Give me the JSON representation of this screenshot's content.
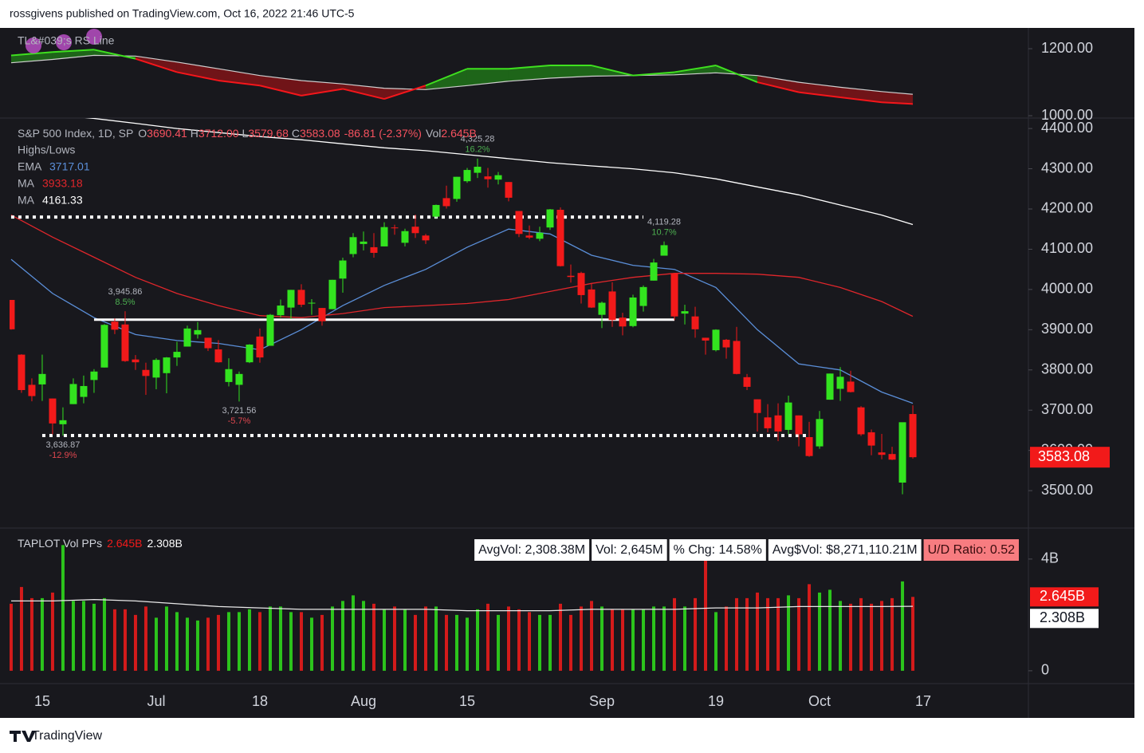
{
  "header": {
    "publisher": "rossgivens published on TradingView.com, Oct 16, 2022 21:46 UTC-5"
  },
  "footer": {
    "brand": "TradingView"
  },
  "chart_data": [
    {
      "type": "line",
      "title": "TL&#039;s RS Line",
      "ylim": [
        993,
        1262
      ],
      "yticks": [
        {
          "value": 1000,
          "label": "1000.00"
        },
        {
          "value": 1200,
          "label": "1200.00"
        }
      ],
      "x": [
        0,
        4,
        8,
        12,
        16,
        20,
        24,
        28,
        32,
        36,
        40,
        44,
        48,
        52,
        56,
        60,
        64,
        68,
        72,
        76,
        80,
        84,
        87
      ],
      "series": [
        {
          "values": [
            1180,
            1190,
            1197,
            1170,
            1130,
            1105,
            1090,
            1060,
            1080,
            1050,
            1090,
            1140,
            1140,
            1150,
            1150,
            1120,
            1130,
            1150,
            1100,
            1070,
            1055,
            1040,
            1035
          ],
          "up_color": "#3fe01f",
          "down_color": "#f5161b",
          "up_fill": "#1f6e1a",
          "down_fill": "#7a1418"
        },
        {
          "values": [
            1158,
            1168,
            1180,
            1178,
            1160,
            1140,
            1120,
            1105,
            1095,
            1082,
            1078,
            1090,
            1103,
            1112,
            1118,
            1120,
            1122,
            1128,
            1120,
            1100,
            1085,
            1072,
            1064
          ],
          "color": "#cfcfcf"
        }
      ]
    },
    {
      "type": "candlestick",
      "legend": {
        "name": "S&P 500 Index, 1D, SP",
        "ohlc": [
          {
            "key": "O",
            "value": "3690.41"
          },
          {
            "key": "H",
            "value": "3712.00"
          },
          {
            "key": "L",
            "value": "3579.68"
          },
          {
            "key": "C",
            "value": "3583.08"
          }
        ],
        "change": "-86.81 (-2.37%)",
        "vol_key": "Vol",
        "vol_value": "2.645B",
        "color": "#f7525f"
      },
      "highs_lows": "Highs/Lows",
      "categories": [
        null,
        null,
        null,
        "15",
        null,
        null,
        null,
        null,
        null,
        null,
        null,
        null,
        null,
        null,
        "Jul",
        null,
        null,
        null,
        null,
        null,
        null,
        null,
        null,
        null,
        "18",
        null,
        null,
        null,
        null,
        null,
        null,
        null,
        null,
        null,
        "Aug",
        null,
        null,
        null,
        null,
        null,
        null,
        null,
        null,
        null,
        "15",
        null,
        null,
        null,
        null,
        null,
        null,
        null,
        null,
        null,
        null,
        null,
        null,
        "Sep",
        null,
        null,
        null,
        null,
        null,
        null,
        null,
        null,
        null,
        null,
        "19",
        null,
        null,
        null,
        null,
        null,
        null,
        null,
        null,
        null,
        "Oct",
        null,
        null,
        null,
        null,
        null,
        null,
        null,
        null,
        null,
        "17"
      ],
      "open": [
        3974,
        3838,
        3763,
        3764,
        3729,
        3665,
        3715,
        3733,
        3775,
        3806,
        3920,
        3913,
        3826,
        3800,
        3781,
        3792,
        3831,
        3858,
        3888,
        3880,
        3851,
        3770,
        3763,
        3819,
        3883,
        3860,
        3936,
        3955,
        3999,
        3966,
        3954,
        3951,
        4027,
        4088,
        4113,
        4105,
        4107,
        4154,
        4116,
        4156,
        4134,
        4181,
        4227,
        4225,
        4269,
        4290,
        4281,
        4273,
        4267,
        4195,
        4134,
        4126,
        4154,
        4198,
        4034,
        4041,
        4000,
        3937,
        3995,
        3930,
        3909,
        3959,
        4022,
        4084,
        4040,
        3940,
        3933,
        3880,
        3849,
        3875,
        3872,
        3782,
        3727,
        3682,
        3687,
        3651,
        3687,
        3633,
        3610,
        3726,
        3753,
        3771,
        3707,
        3645,
        3595,
        3591,
        3520,
        3690.41,
        null
      ],
      "high": [
        3974,
        3839,
        3779,
        3838,
        3729,
        3707,
        3779,
        3786,
        3802,
        3914,
        3928,
        3945.86,
        3837,
        3818,
        3829,
        3832,
        3870,
        3910,
        3919,
        3880,
        3874,
        3829,
        3796,
        3864,
        3903,
        3939,
        3975,
        3999,
        4013,
        3976,
        3954,
        4024,
        4079,
        4140,
        4144,
        4140,
        4167,
        4161,
        4151,
        4186,
        4138,
        4211,
        4258,
        4280,
        4302,
        4325.28,
        4302,
        4292,
        4267,
        4195,
        4159,
        4156,
        4200,
        4204,
        4062,
        4044,
        4015,
        3970,
        4018,
        3942,
        3987,
        4010,
        4076,
        4119.28,
        4040,
        3962,
        3957,
        3880,
        3901,
        3877,
        3907,
        3790,
        3727,
        3715,
        3717,
        3736,
        3687,
        3671,
        3698,
        3791,
        3807,
        3798,
        3710,
        3652,
        3641,
        3609,
        3669,
        3712.0,
        null
      ],
      "low": [
        3900,
        3743,
        3722,
        3723,
        3640,
        3636.87,
        3715,
        3717,
        3743,
        3806,
        3889,
        3820,
        3800,
        3738,
        3752,
        3742,
        3810,
        3858,
        3878,
        3847,
        3818,
        3759,
        3721.56,
        3817,
        3818,
        3860,
        3930,
        3927,
        3956,
        3937,
        3910,
        3951,
        3992,
        4080,
        4097,
        4079,
        4107,
        4136,
        4107,
        4128,
        4113,
        4177,
        4201,
        4218,
        4265,
        4277,
        4253,
        4261,
        4219,
        4130,
        4125,
        4120,
        4148,
        4057,
        4017,
        3965,
        3954,
        3904,
        3907,
        3886,
        3906,
        3945,
        4022,
        4084,
        3924,
        3913,
        3880,
        3838,
        3846,
        3828,
        3789,
        3750,
        3647,
        3645,
        3623,
        3640,
        3610,
        3584,
        3604,
        3726,
        3723,
        3744,
        3636,
        3588,
        3578,
        3576,
        3491,
        3579.68,
        null
      ],
      "close": [
        3901,
        3750,
        3735,
        3790,
        3667,
        3675,
        3765,
        3760,
        3796,
        3912,
        3900,
        3822,
        3819,
        3785,
        3825,
        3831,
        3845,
        3903,
        3899,
        3854,
        3819,
        3802,
        3790,
        3863,
        3831,
        3937,
        3960,
        3999,
        3962,
        3967,
        3921,
        4024,
        4072,
        4130,
        4119,
        4091,
        4155,
        4152,
        4145,
        4140,
        4122,
        4210,
        4207,
        4280,
        4297,
        4305,
        4274,
        4284,
        4228,
        4138,
        4129,
        4141,
        4199,
        4058,
        4031,
        3986,
        3955,
        3967,
        3924,
        3908,
        3980,
        4006,
        4067,
        4110,
        3933,
        3946,
        3901,
        3873,
        3900,
        3856,
        3790,
        3758,
        3693,
        3655,
        3647,
        3719,
        3640,
        3586,
        3678,
        3791,
        3783,
        3745,
        3640,
        3612,
        3589,
        3577,
        3670,
        3583.08,
        null
      ],
      "up_color": "#33e31f",
      "down_color": "#f21a1a",
      "xlim": [
        -0.15,
        98.15
      ],
      "ylim": [
        3407,
        4426
      ],
      "yticks": [
        {
          "value": 3500,
          "label": "3500.00"
        },
        {
          "value": 3600,
          "label": "3600.00"
        },
        {
          "value": 3700,
          "label": "3700.00"
        },
        {
          "value": 3800,
          "label": "3800.00"
        },
        {
          "value": 3900,
          "label": "3900.00"
        },
        {
          "value": 4000,
          "label": "4000.00"
        },
        {
          "value": 4100,
          "label": "4100.00"
        },
        {
          "value": 4200,
          "label": "4200.00"
        },
        {
          "value": 4300,
          "label": "4300.00"
        },
        {
          "value": 4400,
          "label": "4400.00"
        }
      ],
      "grid": false,
      "last_price": {
        "value": 3583.08,
        "label": "3583.08",
        "color": "#f21a1a"
      },
      "lines_x": [
        0,
        4,
        8,
        12,
        16,
        20,
        24,
        28,
        32,
        36,
        40,
        44,
        48,
        52,
        56,
        60,
        64,
        68,
        72,
        76,
        80,
        84,
        87
      ],
      "lines": [
        {
          "name": "EMA",
          "value_label": "3717.01",
          "color": "#5b8fd9",
          "values": [
            4075,
            3990,
            3930,
            3888,
            3873,
            3866,
            3850,
            3900,
            3960,
            4010,
            4050,
            4105,
            4150,
            4138,
            4085,
            4060,
            4050,
            4005,
            3900,
            3815,
            3800,
            3745,
            3717.01
          ]
        },
        {
          "name": "MA",
          "value_label": "3933.18",
          "color": "#e0262b",
          "values": [
            4185,
            4130,
            4080,
            4030,
            3990,
            3960,
            3935,
            3930,
            3940,
            3955,
            3960,
            3965,
            3975,
            3995,
            4015,
            4030,
            4040,
            4040,
            4038,
            4030,
            4005,
            3970,
            3933.18
          ]
        },
        {
          "name": "MA",
          "value_label": "4161.33",
          "color": "#ffffff",
          "values": [
            4445,
            4435,
            4425,
            4413,
            4400,
            4390,
            4380,
            4372,
            4362,
            4352,
            4345,
            4335,
            4325,
            4315,
            4307,
            4300,
            4290,
            4275,
            4255,
            4235,
            4210,
            4185,
            4161.33
          ]
        }
      ],
      "annotations": [
        {
          "x": 45,
          "value": 4325.28,
          "label": "4,325.28",
          "pct": "16.2%",
          "side": "high",
          "color": "#4caf50"
        },
        {
          "x": 63,
          "value": 4119.28,
          "label": "4,119.28",
          "pct": "10.7%",
          "side": "high",
          "color": "#4caf50"
        },
        {
          "x": 11,
          "value": 3945.86,
          "label": "3,945.86",
          "pct": "8.5%",
          "side": "high",
          "color": "#4caf50"
        },
        {
          "x": 22,
          "value": 3721.56,
          "label": "3,721.56",
          "pct": "-5.7%",
          "side": "low",
          "color": "#e0474f"
        },
        {
          "x": 5,
          "value": 3636.87,
          "label": "3,636.87",
          "pct": "-12.9%",
          "side": "low",
          "color": "#e0474f"
        }
      ],
      "levels": [
        {
          "value": 4180,
          "from": 0,
          "to": 61,
          "style": "dotted"
        },
        {
          "value": 3925,
          "from": 8,
          "to": 64,
          "style": "solid"
        },
        {
          "value": 3636.87,
          "from": 3,
          "to": 77,
          "style": "dotted"
        }
      ]
    },
    {
      "type": "bar",
      "title": "TAPLOT Vol PPs",
      "values": [
        2.4,
        3.0,
        2.6,
        2.6,
        2.8,
        4.5,
        2.5,
        2.5,
        2.4,
        2.6,
        2.2,
        2.2,
        2.0,
        2.3,
        1.9,
        2.3,
        2.1,
        1.9,
        1.8,
        1.9,
        2.0,
        2.1,
        2.1,
        2.2,
        2.1,
        2.3,
        2.3,
        2.1,
        2.1,
        1.9,
        2.0,
        2.3,
        2.5,
        2.7,
        2.5,
        2.4,
        2.2,
        2.3,
        2.2,
        2.0,
        2.3,
        2.3,
        2.0,
        2.0,
        1.9,
        2.2,
        2.4,
        2.0,
        2.3,
        2.2,
        2.1,
        2.0,
        2.0,
        2.4,
        2.0,
        2.3,
        2.5,
        2.3,
        2.2,
        2.2,
        2.2,
        2.2,
        2.3,
        2.3,
        2.6,
        2.3,
        2.6,
        3.95,
        2.1,
        2.3,
        2.6,
        2.6,
        2.8,
        2.6,
        2.6,
        2.7,
        2.6,
        3.1,
        2.8,
        2.9,
        2.5,
        2.4,
        2.6,
        2.4,
        2.5,
        2.6,
        3.2,
        2.645,
        null
      ],
      "up_color": "#2cc41c",
      "down_color": "#d41b1b",
      "ylim": [
        -0.46,
        5.11
      ],
      "yticks": [
        0,
        {
          "value": 4,
          "label": "4B"
        }
      ],
      "ma": {
        "x": [
          0,
          4,
          8,
          12,
          16,
          20,
          24,
          28,
          32,
          36,
          40,
          44,
          48,
          52,
          56,
          60,
          64,
          68,
          72,
          76,
          80,
          84,
          87
        ],
        "values": [
          2.5,
          2.5,
          2.55,
          2.5,
          2.4,
          2.3,
          2.25,
          2.2,
          2.2,
          2.2,
          2.2,
          2.15,
          2.15,
          2.15,
          2.2,
          2.2,
          2.2,
          2.25,
          2.25,
          2.3,
          2.3,
          2.3,
          2.308
        ],
        "color": "#e8e8e8"
      },
      "current": {
        "value": 2.645,
        "label": "2.645B",
        "color": "#f21a1a"
      },
      "average": {
        "value": 2.308,
        "label": "2.308B",
        "color": "#ffffff"
      },
      "stats": [
        "AvgVol: 2,308.38M",
        "Vol: 2,645M",
        "% Chg: 14.58%",
        "Avg$Vol: $8,271,110.21M",
        "U/D Ratio: 0.52"
      ],
      "stats_alert_color": "#f77c80"
    }
  ]
}
